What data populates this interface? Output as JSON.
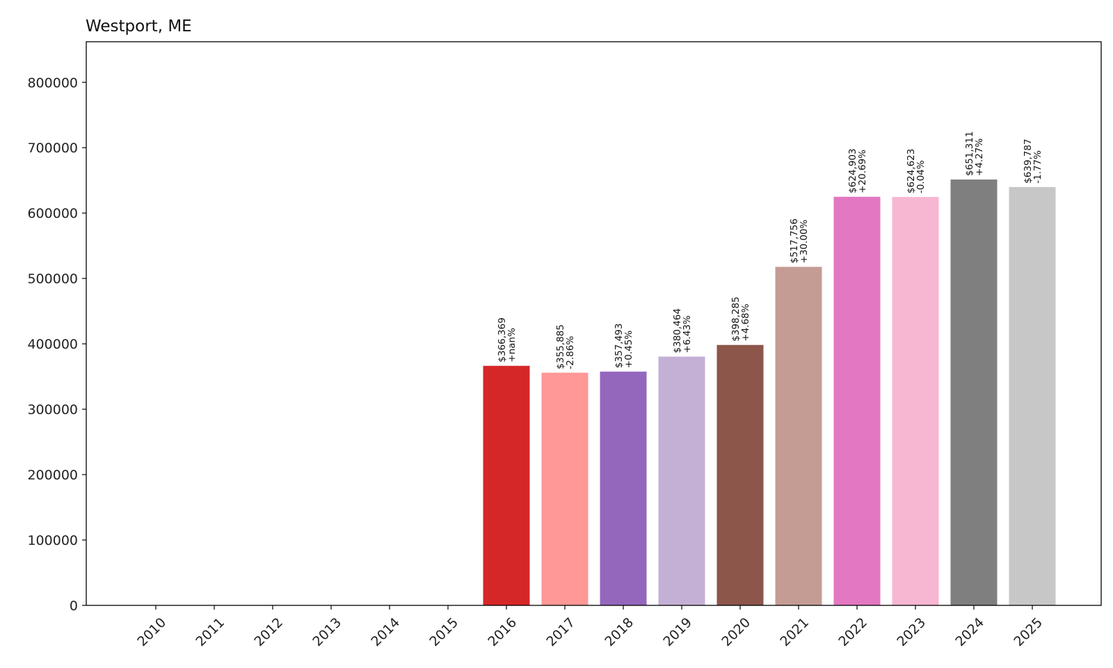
{
  "chart_data": {
    "type": "bar",
    "title": "Westport, ME",
    "xlabel": "",
    "ylabel": "",
    "categories": [
      "2010",
      "2011",
      "2012",
      "2013",
      "2014",
      "2015",
      "2016",
      "2017",
      "2018",
      "2019",
      "2020",
      "2021",
      "2022",
      "2023",
      "2024",
      "2025"
    ],
    "values": [
      0,
      0,
      0,
      0,
      0,
      0,
      366369,
      355885,
      357493,
      380464,
      398285,
      517756,
      624903,
      624623,
      651311,
      639787
    ],
    "bar_labels": [
      [
        "",
        ""
      ],
      [
        "",
        ""
      ],
      [
        "",
        ""
      ],
      [
        "",
        ""
      ],
      [
        "",
        ""
      ],
      [
        "",
        ""
      ],
      [
        "$366,369",
        "+nan%"
      ],
      [
        "$355,885",
        "-2.86%"
      ],
      [
        "$357,493",
        "+0.45%"
      ],
      [
        "$380,464",
        "+6.43%"
      ],
      [
        "$398,285",
        "+4.68%"
      ],
      [
        "$517,756",
        "+30.00%"
      ],
      [
        "$624,903",
        "+20.69%"
      ],
      [
        "$624,623",
        "-0.04%"
      ],
      [
        "$651,311",
        "+4.27%"
      ],
      [
        "$639,787",
        "-1.77%"
      ]
    ],
    "colors": [
      "#1f77b4",
      "#ff7f0e",
      "#2ca02c",
      "#d62728",
      "#9467bd",
      "#8c564b",
      "#d62728",
      "#ff9896",
      "#9467bd",
      "#c5b0d5",
      "#8c564b",
      "#c49c94",
      "#e377c2",
      "#f7b6d2",
      "#7f7f7f",
      "#c7c7c7"
    ],
    "yticks": [
      0,
      100000,
      200000,
      300000,
      400000,
      500000,
      600000,
      700000,
      800000
    ],
    "ylim": [
      0,
      862000
    ],
    "grid": false,
    "legend": "none"
  }
}
